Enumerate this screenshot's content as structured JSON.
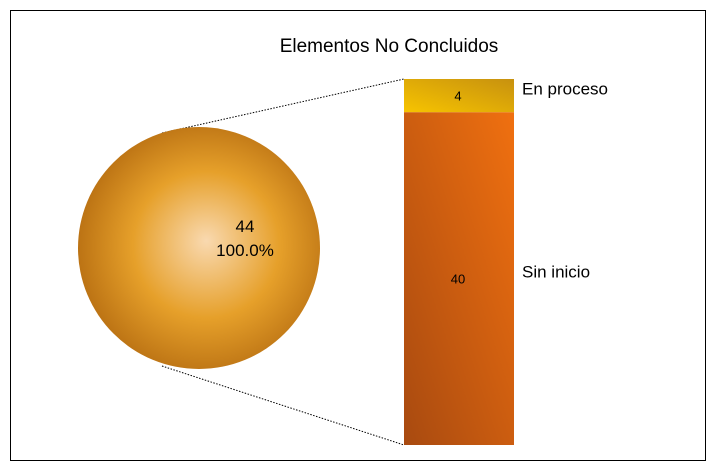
{
  "chart_data": {
    "type": "pie",
    "title": "Elementos No Concluidos",
    "pie": {
      "value_label": "44",
      "percent_label": "100.0%",
      "total": 44
    },
    "breakdown": [
      {
        "label": "En proceso",
        "value": 4
      },
      {
        "label": "Sin inicio",
        "value": 40
      }
    ],
    "colors": {
      "pie_light": "#f9d9b0",
      "pie_mid": "#e6a02a",
      "pie_dark": "#b86f12",
      "en_proceso_top": "#c7910f",
      "en_proceso_bottom": "#f7c400",
      "sin_inicio_top": "#f07010",
      "sin_inicio_bottom": "#a84a10"
    }
  }
}
